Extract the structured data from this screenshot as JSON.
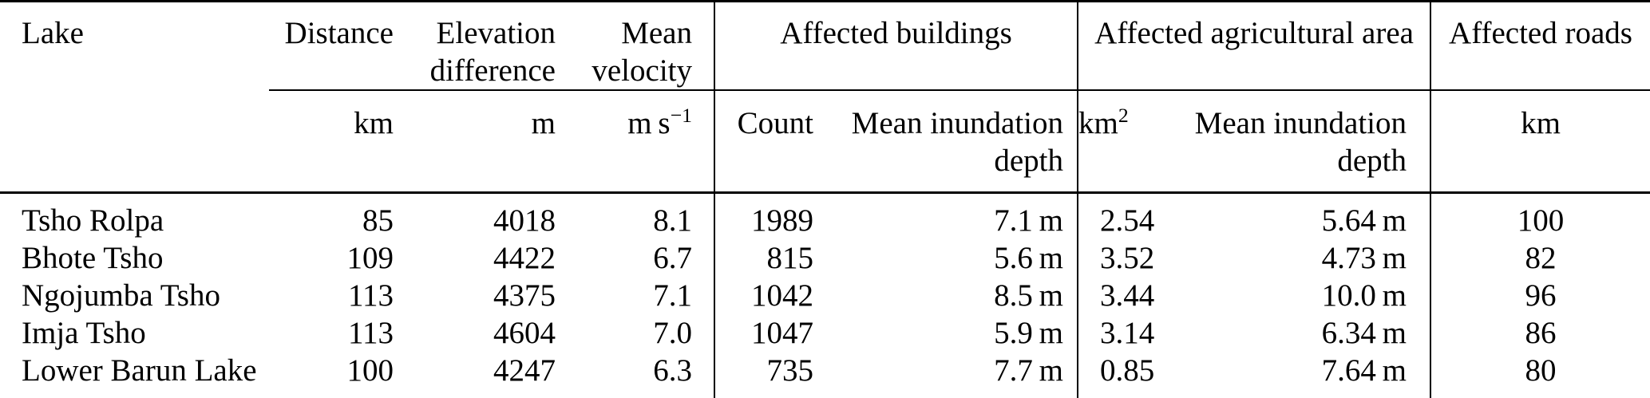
{
  "table": {
    "header": {
      "lake": "Lake",
      "distance": "Distance",
      "elevation_difference": "Elevation difference",
      "mean_velocity": "Mean velocity",
      "affected_buildings": "Affected buildings",
      "affected_agricultural_area": "Affected agricultural area",
      "affected_roads": "Affected roads"
    },
    "units": {
      "distance": "km",
      "elevation_difference": "m",
      "mean_velocity_base": "m s",
      "mean_velocity_sup": "−1",
      "buildings_count": "Count",
      "buildings_depth": "Mean inundation depth",
      "agri_area_base": "km",
      "agri_area_sup": "2",
      "agri_depth": "Mean inundation depth",
      "roads": "km"
    },
    "rows": [
      {
        "lake": "Tsho Rolpa",
        "distance": "85",
        "elevation": "4018",
        "velocity": "8.1",
        "buildings_count": "1989",
        "buildings_depth": "7.1 m",
        "agri_area": "2.54",
        "agri_depth": "5.64 m",
        "roads": "100"
      },
      {
        "lake": "Bhote Tsho",
        "distance": "109",
        "elevation": "4422",
        "velocity": "6.7",
        "buildings_count": "815",
        "buildings_depth": "5.6 m",
        "agri_area": "3.52",
        "agri_depth": "4.73 m",
        "roads": "82"
      },
      {
        "lake": "Ngojumba Tsho",
        "distance": "113",
        "elevation": "4375",
        "velocity": "7.1",
        "buildings_count": "1042",
        "buildings_depth": "8.5 m",
        "agri_area": "3.44",
        "agri_depth": "10.0 m",
        "roads": "96"
      },
      {
        "lake": "Imja Tsho",
        "distance": "113",
        "elevation": "4604",
        "velocity": "7.0",
        "buildings_count": "1047",
        "buildings_depth": "5.9 m",
        "agri_area": "3.14",
        "agri_depth": "6.34 m",
        "roads": "86"
      },
      {
        "lake": "Lower Barun Lake",
        "distance": "100",
        "elevation": "4247",
        "velocity": "6.3",
        "buildings_count": "735",
        "buildings_depth": "7.7 m",
        "agri_area": "0.85",
        "agri_depth": "7.64 m",
        "roads": "80"
      }
    ]
  }
}
